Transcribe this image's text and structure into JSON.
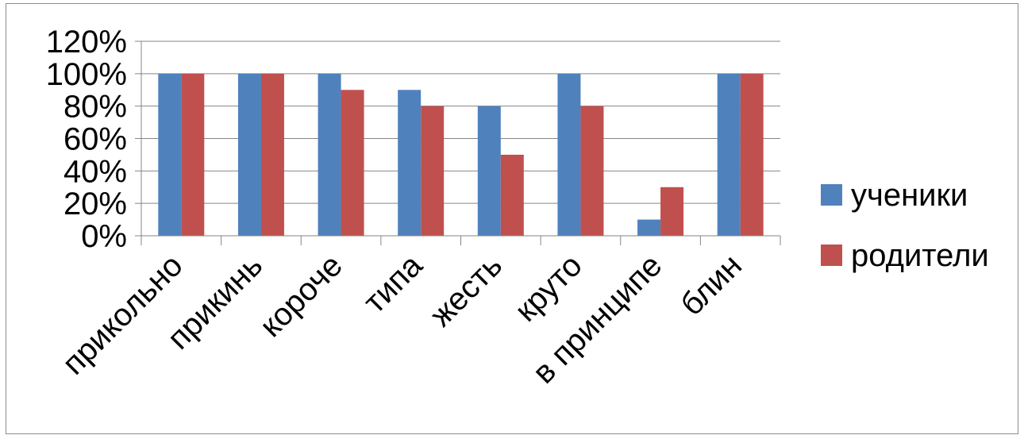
{
  "chart_data": {
    "type": "bar",
    "title": "",
    "xlabel": "",
    "ylabel": "",
    "categories": [
      "прикольно",
      "прикинь",
      "короче",
      "типа",
      "жесть",
      "круто",
      "в принципе",
      "блин"
    ],
    "series": [
      {
        "name": "ученики",
        "color": "#4f81bd",
        "values": [
          1.0,
          1.0,
          1.0,
          0.9,
          0.8,
          1.0,
          0.1,
          1.0
        ]
      },
      {
        "name": "родители",
        "color": "#c0504d",
        "values": [
          1.0,
          1.0,
          0.9,
          0.8,
          0.5,
          0.8,
          0.3,
          1.0
        ]
      }
    ],
    "ylim": [
      0,
      1.2
    ],
    "yticks": [
      "0%",
      "20%",
      "40%",
      "60%",
      "80%",
      "100%",
      "120%"
    ],
    "grid": true,
    "legend_position": "right"
  }
}
